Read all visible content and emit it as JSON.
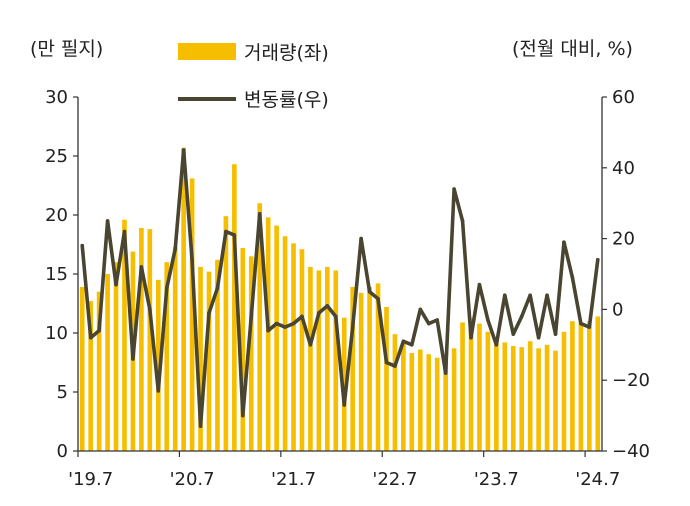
{
  "chart_data": {
    "type": "bar+line",
    "left_axis_title": "(만 필지)",
    "right_axis_title": "(전월 대비, %)",
    "left_ylim": [
      0,
      30
    ],
    "left_ticks": [
      "0",
      "5",
      "10",
      "15",
      "20",
      "25",
      "30"
    ],
    "right_ylim": [
      -40,
      60
    ],
    "right_ticks": [
      "−40",
      "−20",
      "0",
      "20",
      "40",
      "60"
    ],
    "x_tick_labels": [
      "'19.7",
      "'20.7",
      "'21.7",
      "'22.7",
      "'23.7",
      "'24.7"
    ],
    "x_tick_index": [
      0,
      12,
      24,
      36,
      48,
      60
    ],
    "colors": {
      "bar": "#F5BE00",
      "line": "#4A4530",
      "axis": "#333333"
    },
    "series": [
      {
        "name": "거래량(좌)",
        "type": "bar",
        "axis": "left",
        "values": [
          13.9,
          12.7,
          13.5,
          15.0,
          16.0,
          19.6,
          16.9,
          18.9,
          18.8,
          14.5,
          16.0,
          17.3,
          25.7,
          23.1,
          15.6,
          15.2,
          16.2,
          19.9,
          24.3,
          17.2,
          16.5,
          21.0,
          19.8,
          19.1,
          18.2,
          17.6,
          17.1,
          15.6,
          15.3,
          15.6,
          15.3,
          11.3,
          13.9,
          13.4,
          13.9,
          14.2,
          12.2,
          9.9,
          9.1,
          8.3,
          8.6,
          8.2,
          7.9,
          8.1,
          8.7,
          10.9,
          11.3,
          10.8,
          10.1,
          9.4,
          9.2,
          8.9,
          8.8,
          9.3,
          8.7,
          9.0,
          8.5,
          10.1,
          11.0,
          10.9,
          11.0,
          11.4
        ]
      },
      {
        "name": "변동률(우)",
        "type": "line",
        "axis": "right",
        "values": [
          18,
          -8,
          -6,
          25,
          7,
          22,
          -14,
          12,
          0,
          -23,
          6,
          17,
          45,
          14,
          -33,
          -1,
          6,
          22,
          21,
          -30,
          -2,
          27,
          -6,
          -4,
          -5,
          -4,
          -2,
          -10,
          -1,
          1,
          -2,
          -27,
          -5,
          20,
          5,
          3,
          -15,
          -16,
          -9,
          -10,
          0,
          -4,
          -3,
          -18,
          34,
          25,
          -8,
          7,
          -3,
          -10,
          4,
          -7,
          -2,
          4,
          -8,
          4,
          -7,
          19,
          9,
          -4,
          -5,
          14
        ]
      }
    ]
  }
}
